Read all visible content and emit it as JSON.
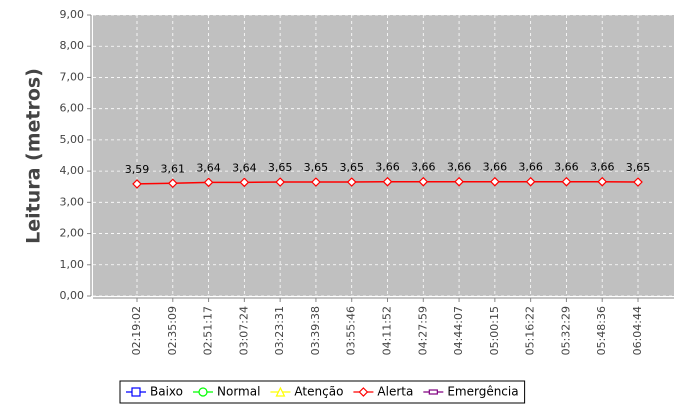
{
  "chart_data": {
    "type": "line",
    "ylabel": "Leitura (metros)",
    "categories": [
      "02:19:02",
      "02:35:09",
      "02:51:17",
      "03:07:24",
      "03:23:31",
      "03:39:38",
      "03:55:46",
      "04:11:52",
      "04:27:59",
      "04:44:07",
      "05:00:15",
      "05:16:22",
      "05:32:29",
      "05:48:36",
      "06:04:44"
    ],
    "series": [
      {
        "name": "Baixo",
        "color": "#0000ff",
        "marker": "square",
        "values": [
          null,
          null,
          null,
          null,
          null,
          null,
          null,
          null,
          null,
          null,
          null,
          null,
          null,
          null,
          null
        ]
      },
      {
        "name": "Normal",
        "color": "#00ff00",
        "marker": "circle",
        "values": [
          null,
          null,
          null,
          null,
          null,
          null,
          null,
          null,
          null,
          null,
          null,
          null,
          null,
          null,
          null
        ]
      },
      {
        "name": "Atenção",
        "color": "#ffff00",
        "marker": "triangle",
        "values": [
          null,
          null,
          null,
          null,
          null,
          null,
          null,
          null,
          null,
          null,
          null,
          null,
          null,
          null,
          null
        ]
      },
      {
        "name": "Alerta",
        "color": "#ff0000",
        "marker": "diamond",
        "values": [
          3.59,
          3.61,
          3.64,
          3.64,
          3.65,
          3.65,
          3.65,
          3.66,
          3.66,
          3.66,
          3.66,
          3.66,
          3.66,
          3.66,
          3.65
        ],
        "value_labels": [
          "3,59",
          "3,61",
          "3,64",
          "3,64",
          "3,65",
          "3,65",
          "3,65",
          "3,66",
          "3,66",
          "3,66",
          "3,66",
          "3,66",
          "3,66",
          "3,66",
          "3,65"
        ]
      },
      {
        "name": "Emergência",
        "color": "#800080",
        "marker": "rect",
        "values": [
          null,
          null,
          null,
          null,
          null,
          null,
          null,
          null,
          null,
          null,
          null,
          null,
          null,
          null,
          null
        ]
      }
    ],
    "ylim": [
      0,
      9
    ],
    "yticks": [
      {
        "value": 0,
        "label": "0,00"
      },
      {
        "value": 1,
        "label": "1,00"
      },
      {
        "value": 2,
        "label": "2,00"
      },
      {
        "value": 3,
        "label": "3,00"
      },
      {
        "value": 4,
        "label": "4,00"
      },
      {
        "value": 5,
        "label": "5,00"
      },
      {
        "value": 6,
        "label": "6,00"
      },
      {
        "value": 7,
        "label": "7,00"
      },
      {
        "value": 8,
        "label": "8,00"
      },
      {
        "value": 9,
        "label": "9,00"
      }
    ],
    "grid": true,
    "legend": "bottom",
    "plot_background": "#c0c0c0"
  }
}
